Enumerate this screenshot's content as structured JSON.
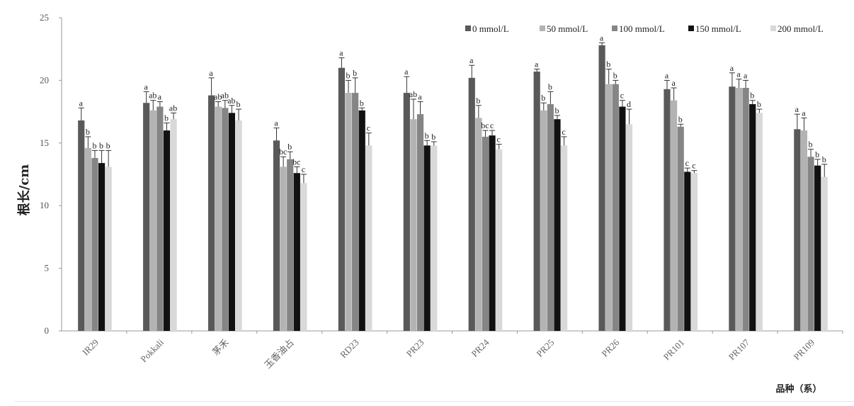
{
  "chart_data": {
    "type": "bar",
    "title": "",
    "ylabel": "根长/cm",
    "xlabel": "品种（系）",
    "ylim": [
      0,
      25
    ],
    "yticks": [
      "0",
      "5",
      "10",
      "15",
      "20",
      "25"
    ],
    "grid": false,
    "legend_position": "top-right",
    "categories": [
      "IR29",
      "Pokkali",
      "茅禾",
      "玉香油占",
      "RD23",
      "PR23",
      "PR24",
      "PR25",
      "PR26",
      "PR101",
      "PR107",
      "PR109"
    ],
    "series": [
      {
        "name": "0 mmol/L",
        "color": "#595959",
        "values": [
          16.8,
          18.2,
          18.8,
          15.2,
          21.0,
          19.0,
          20.2,
          20.7,
          22.8,
          19.3,
          19.5,
          16.1
        ],
        "errors": [
          1.0,
          0.9,
          1.4,
          1.0,
          0.8,
          1.3,
          1.0,
          0.2,
          0.2,
          0.7,
          1.1,
          1.2
        ],
        "labels": [
          "a",
          "a",
          "a",
          "a",
          "a",
          "a",
          "a",
          "a",
          "a",
          "a",
          "a",
          "a"
        ]
      },
      {
        "name": "50 mmol/L",
        "color": "#b3b3b3",
        "values": [
          14.6,
          17.6,
          17.9,
          13.1,
          19.0,
          16.9,
          17.0,
          17.6,
          19.7,
          18.4,
          19.4,
          16.0
        ],
        "errors": [
          0.9,
          0.8,
          0.4,
          0.8,
          1.0,
          1.6,
          1.0,
          0.6,
          1.2,
          1.0,
          0.7,
          1.0
        ],
        "labels": [
          "b",
          "ab",
          "ab",
          "bc",
          "b",
          "ab",
          "b",
          "b",
          "b",
          "a",
          "a",
          "a"
        ]
      },
      {
        "name": "100 mmol/L",
        "color": "#858585",
        "values": [
          13.8,
          17.9,
          17.8,
          13.7,
          19.0,
          17.3,
          15.5,
          18.1,
          19.7,
          16.3,
          19.4,
          13.9
        ],
        "errors": [
          0.6,
          0.4,
          0.6,
          0.6,
          1.2,
          1.0,
          0.5,
          1.0,
          0.3,
          0.2,
          0.6,
          0.6
        ],
        "labels": [
          "b",
          "a",
          "ab",
          "b",
          "b",
          "a",
          "bc",
          "b",
          "b",
          "b",
          "a",
          "b"
        ]
      },
      {
        "name": "150 mmol/L",
        "color": "#111111",
        "values": [
          13.4,
          16.0,
          17.4,
          12.6,
          17.6,
          14.8,
          15.6,
          16.9,
          17.9,
          12.7,
          18.1,
          13.2
        ],
        "errors": [
          1.0,
          0.6,
          0.6,
          0.5,
          0.2,
          0.4,
          0.4,
          0.3,
          0.5,
          0.3,
          0.3,
          0.5
        ],
        "labels": [
          "b",
          "b",
          "ab",
          "bc",
          "b",
          "b",
          "c",
          "b",
          "c",
          "c",
          "b",
          "b"
        ]
      },
      {
        "name": "200 mmol/L",
        "color": "#d9d9d9",
        "values": [
          13.1,
          16.9,
          16.8,
          11.8,
          14.8,
          14.8,
          14.5,
          14.8,
          16.5,
          12.6,
          17.4,
          12.3
        ],
        "errors": [
          1.3,
          0.5,
          0.9,
          0.7,
          1.0,
          0.3,
          0.4,
          0.7,
          1.2,
          0.2,
          0.3,
          1.0
        ],
        "labels": [
          "b",
          "ab",
          "b",
          "c",
          "c",
          "b",
          "c",
          "c",
          "d",
          "c",
          "b",
          "b"
        ]
      }
    ]
  }
}
